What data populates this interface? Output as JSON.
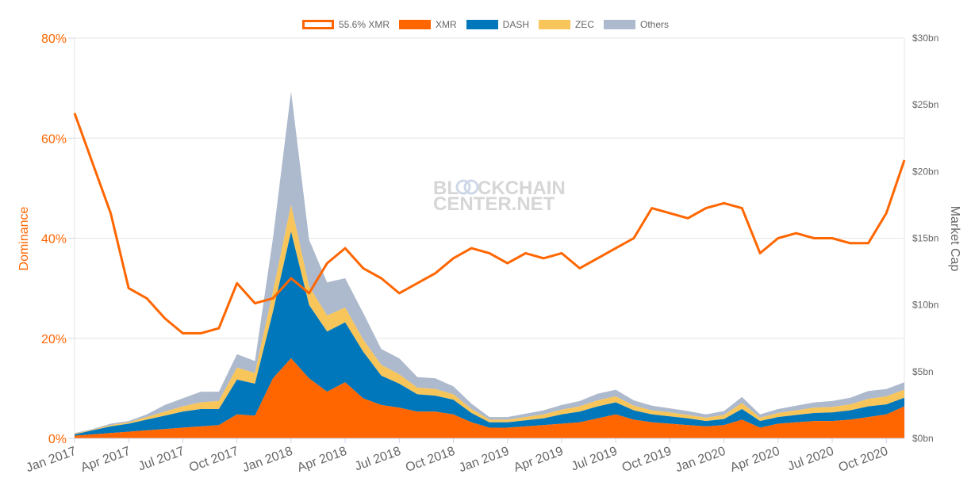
{
  "legend": {
    "items": [
      {
        "label": "55.6% XMR",
        "style": "outline",
        "color": "#ff6600"
      },
      {
        "label": "XMR",
        "style": "fill",
        "color": "#ff6600"
      },
      {
        "label": "DASH",
        "style": "fill",
        "color": "#0077bb"
      },
      {
        "label": "ZEC",
        "style": "fill",
        "color": "#f7c55a"
      },
      {
        "label": "Others",
        "style": "fill",
        "color": "#adb9cc"
      }
    ]
  },
  "watermark": {
    "line1": "BL",
    "line1b": "CKCHAIN",
    "line2": "CENTER.NET"
  },
  "chart_data": {
    "type": "area",
    "title": "",
    "xlabel": "",
    "ylabel_left": "Dominance",
    "ylabel_right": "Market Cap",
    "ylim_left": [
      0,
      80
    ],
    "ylim_right": [
      0,
      30
    ],
    "yticks_left": [
      "0%",
      "20%",
      "40%",
      "60%",
      "80%"
    ],
    "yticks_right": [
      "$0bn",
      "$5bn",
      "$10bn",
      "$15bn",
      "$20bn",
      "$25bn",
      "$30bn"
    ],
    "xticks": [
      "Jan 2017",
      "Apr 2017",
      "Jul 2017",
      "Oct 2017",
      "Jan 2018",
      "Apr 2018",
      "Jul 2018",
      "Oct 2018",
      "Jan 2019",
      "Apr 2019",
      "Jul 2019",
      "Oct 2019",
      "Jan 2020",
      "Apr 2020",
      "Jul 2020",
      "Oct 2020"
    ],
    "grid": true,
    "legend_position": "top",
    "x": [
      "2017-01",
      "2017-02",
      "2017-03",
      "2017-04",
      "2017-05",
      "2017-06",
      "2017-07",
      "2017-08",
      "2017-09",
      "2017-10",
      "2017-11",
      "2017-12",
      "2018-01",
      "2018-02",
      "2018-03",
      "2018-04",
      "2018-05",
      "2018-06",
      "2018-07",
      "2018-08",
      "2018-09",
      "2018-10",
      "2018-11",
      "2018-12",
      "2019-01",
      "2019-02",
      "2019-03",
      "2019-04",
      "2019-05",
      "2019-06",
      "2019-07",
      "2019-08",
      "2019-09",
      "2019-10",
      "2019-11",
      "2019-12",
      "2020-01",
      "2020-02",
      "2020-03",
      "2020-04",
      "2020-05",
      "2020-06",
      "2020-07",
      "2020-08",
      "2020-09",
      "2020-10",
      "2020-11"
    ],
    "series": [
      {
        "name": "XMR",
        "axis": "right",
        "stacked": true,
        "color": "#ff6600",
        "values": [
          0.2,
          0.3,
          0.4,
          0.5,
          0.6,
          0.7,
          0.8,
          0.9,
          1.0,
          1.8,
          1.7,
          4.5,
          6.0,
          4.5,
          3.5,
          4.2,
          3.0,
          2.5,
          2.3,
          2.0,
          2.0,
          1.8,
          1.2,
          0.8,
          0.8,
          0.9,
          1.0,
          1.1,
          1.2,
          1.5,
          1.8,
          1.4,
          1.2,
          1.1,
          1.0,
          0.9,
          1.0,
          1.4,
          0.8,
          1.1,
          1.2,
          1.3,
          1.3,
          1.4,
          1.6,
          1.8,
          2.4
        ]
      },
      {
        "name": "DASH",
        "axis": "right",
        "stacked": true,
        "color": "#0077bb",
        "values": [
          0.1,
          0.3,
          0.5,
          0.6,
          0.8,
          1.0,
          1.2,
          1.3,
          1.2,
          2.6,
          2.4,
          5.0,
          9.5,
          5.5,
          4.5,
          4.5,
          3.5,
          2.2,
          1.8,
          1.3,
          1.2,
          1.1,
          0.7,
          0.4,
          0.4,
          0.45,
          0.5,
          0.7,
          0.8,
          0.9,
          0.9,
          0.7,
          0.6,
          0.55,
          0.5,
          0.4,
          0.45,
          0.8,
          0.5,
          0.5,
          0.55,
          0.6,
          0.65,
          0.7,
          0.8,
          0.75,
          0.65
        ]
      },
      {
        "name": "ZEC",
        "axis": "right",
        "stacked": true,
        "color": "#f7c55a",
        "values": [
          0.05,
          0.05,
          0.1,
          0.1,
          0.2,
          0.3,
          0.4,
          0.5,
          0.6,
          0.9,
          0.8,
          1.5,
          2.0,
          1.4,
          1.2,
          1.1,
          0.9,
          0.8,
          0.7,
          0.5,
          0.5,
          0.4,
          0.3,
          0.2,
          0.2,
          0.25,
          0.3,
          0.35,
          0.4,
          0.45,
          0.45,
          0.35,
          0.3,
          0.3,
          0.25,
          0.25,
          0.3,
          0.45,
          0.25,
          0.3,
          0.35,
          0.4,
          0.4,
          0.45,
          0.55,
          0.6,
          0.6
        ]
      },
      {
        "name": "Others",
        "axis": "right",
        "stacked": true,
        "color": "#adb9cc",
        "values": [
          0.05,
          0.05,
          0.1,
          0.1,
          0.2,
          0.5,
          0.6,
          0.8,
          0.7,
          1.0,
          0.9,
          4.0,
          8.5,
          3.5,
          2.5,
          2.2,
          2.0,
          1.2,
          1.2,
          0.8,
          0.8,
          0.6,
          0.4,
          0.2,
          0.2,
          0.25,
          0.3,
          0.35,
          0.4,
          0.5,
          0.5,
          0.4,
          0.35,
          0.3,
          0.3,
          0.25,
          0.3,
          0.45,
          0.25,
          0.3,
          0.35,
          0.4,
          0.45,
          0.5,
          0.6,
          0.55,
          0.55
        ]
      },
      {
        "name": "XMR Dominance",
        "axis": "left",
        "type": "line",
        "color": "#ff6600",
        "values": [
          65,
          55,
          45,
          30,
          28,
          24,
          21,
          21,
          22,
          31,
          27,
          28,
          32,
          29,
          35,
          38,
          34,
          32,
          29,
          31,
          33,
          36,
          38,
          37,
          35,
          37,
          36,
          37,
          34,
          36,
          38,
          40,
          46,
          45,
          44,
          46,
          47,
          46,
          37,
          40,
          41,
          40,
          40,
          39,
          39,
          45,
          55.6
        ]
      }
    ]
  }
}
